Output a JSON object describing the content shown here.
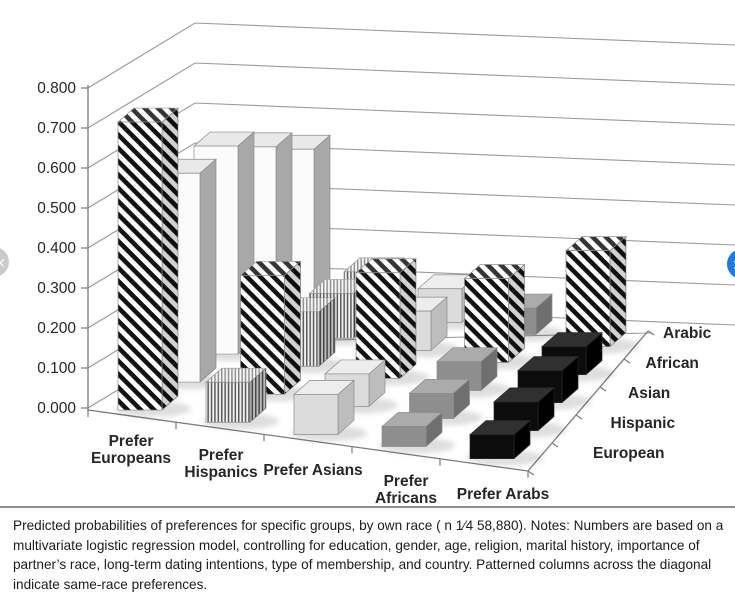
{
  "figure": {
    "caption": "Predicted probabilities of preferences for specific groups, by own race ( n 1⁄4 58,880). Notes: Numbers are based on a multivariate logistic regression model, controlling for education, gender, age, religion, marital history, importance of partner’s race, long-term dating intentions, type of membership, and country. Patterned columns across the diagonal indicate same-race preferences."
  },
  "carousel": {
    "prev_label": "‹",
    "next_label": "›",
    "prev_color": "#cbcbcb",
    "next_color": "#2579dd"
  },
  "chart_data": {
    "type": "bar",
    "projection": "3d-column",
    "title": "",
    "xlabel": "",
    "ylabel": "",
    "ylim": [
      0,
      0.8
    ],
    "grid": true,
    "y_ticks": [
      "0.000",
      "0.100",
      "0.200",
      "0.300",
      "0.400",
      "0.500",
      "0.600",
      "0.700",
      "0.800"
    ],
    "categories": [
      "Prefer Europeans",
      "Prefer Hispanics",
      "Prefer Asians",
      "Prefer Africans",
      "Prefer Arabs"
    ],
    "category_label_lines": [
      [
        "Prefer",
        "Europeans"
      ],
      [
        "Prefer",
        "Hispanics"
      ],
      [
        "Prefer Asians"
      ],
      [
        "Prefer",
        "Africans"
      ],
      [
        "Prefer Arabs"
      ]
    ],
    "depth_rows": [
      "European",
      "Hispanic",
      "Asian",
      "African",
      "Arabic"
    ],
    "legend_position": "right-depth-axis",
    "series": [
      {
        "name": "Prefer Europeans",
        "fill": "white",
        "values": [
          0.72,
          0.58,
          0.65,
          0.64,
          0.62
        ]
      },
      {
        "name": "Prefer Hispanics",
        "fill": "vstripe",
        "values": [
          0.1,
          0.33,
          0.17,
          0.16,
          0.16
        ]
      },
      {
        "name": "Prefer Asians",
        "fill": "lightgray",
        "values": [
          0.1,
          0.09,
          0.33,
          0.14,
          0.14
        ]
      },
      {
        "name": "Prefer Africans",
        "fill": "gray",
        "values": [
          0.05,
          0.07,
          0.09,
          0.3,
          0.11
        ]
      },
      {
        "name": "Prefer Arabs",
        "fill": "black",
        "values": [
          0.06,
          0.08,
          0.1,
          0.1,
          0.4
        ]
      }
    ],
    "diagonal_pattern": "bold-diagonal-stripes",
    "diagonal_meaning": "same-race preferences",
    "colors": {
      "white_bar": "#fbfbfb",
      "light_gray_bar": "#dcdcdc",
      "gray_bar": "#8e8e8e",
      "black_bar": "#0c0c0c",
      "axis_text": "#262626"
    }
  }
}
